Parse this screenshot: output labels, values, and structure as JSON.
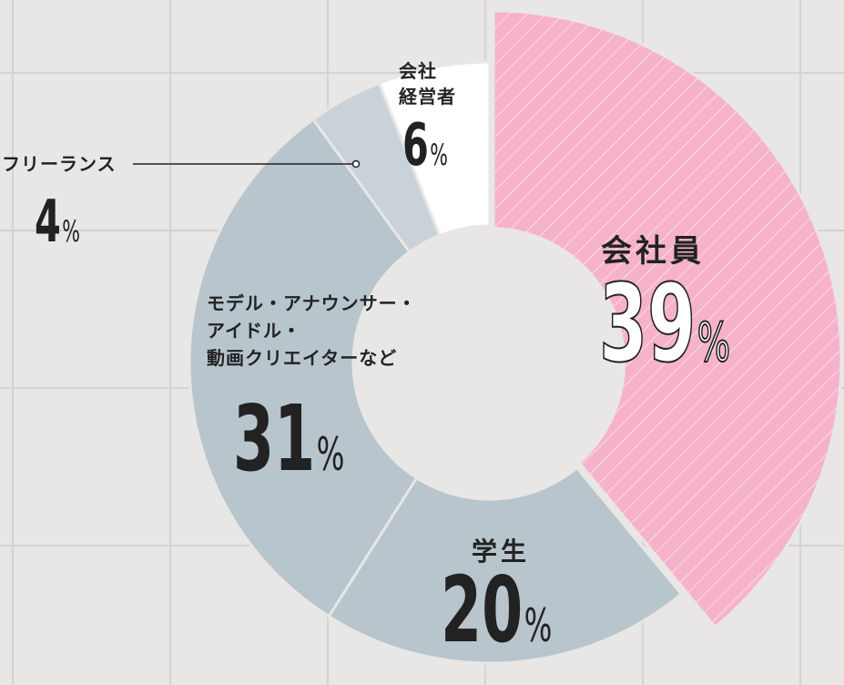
{
  "chart_data": {
    "type": "donut",
    "title": "",
    "unit": "%",
    "slices": [
      {
        "label": "会社員",
        "value": 39,
        "color": "#f6b2cb",
        "pattern": "diagonal-stripes"
      },
      {
        "label": "学生",
        "value": 20,
        "color": "#b8c5cd"
      },
      {
        "label": "モデル・アナウンサー・アイドル・動画クリエイターなど",
        "value": 31,
        "color": "#b8c5cd"
      },
      {
        "label": "フリーランス",
        "value": 4,
        "color": "#c9d2d9"
      },
      {
        "label": "会社経営者",
        "value": 6,
        "color": "#ffffff"
      }
    ]
  },
  "labels": {
    "employee": {
      "name": "会社員",
      "value": "39",
      "unit": "%"
    },
    "student": {
      "name": "学生",
      "value": "20",
      "unit": "%"
    },
    "model": {
      "line1": "モデル・アナウンサー・",
      "line2": "アイドル・",
      "line3": "動画クリエイターなど",
      "value": "31",
      "unit": "%"
    },
    "freelance": {
      "name": "フリーランス",
      "value": "4",
      "unit": "%"
    },
    "executive": {
      "line1": "会社",
      "line2": "経営者",
      "value": "6",
      "unit": "%"
    }
  }
}
